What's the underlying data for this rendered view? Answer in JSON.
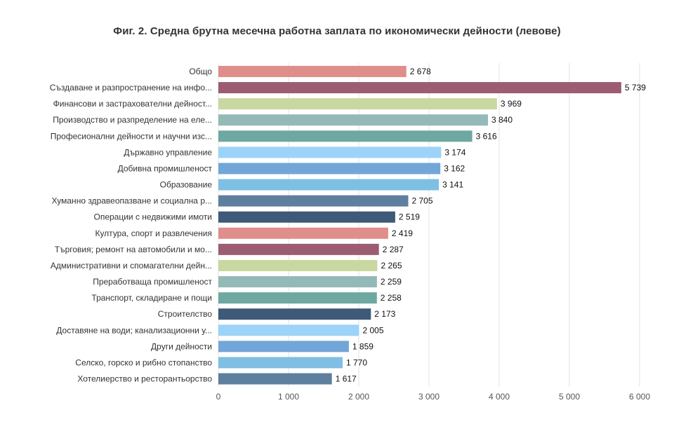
{
  "chart_data": {
    "type": "bar",
    "orientation": "horizontal",
    "title": "Фиг. 2. Средна брутна месечна работна заплата по икономически дейности (левове)",
    "xlabel": "",
    "ylabel": "",
    "xlim": [
      0,
      6000
    ],
    "xticks": [
      0,
      1000,
      2000,
      3000,
      4000,
      5000,
      6000
    ],
    "xtick_labels": [
      "0",
      "1 000",
      "2 000",
      "3 000",
      "4 000",
      "5 000",
      "6 000"
    ],
    "grid": true,
    "legend": false,
    "categories": [
      "Общо",
      "Създаване и разпространение на инфо...",
      "Финансови и застрахователни дейност...",
      "Производство и разпределение на еле...",
      "Професионални дейности и научни изс...",
      "Държавно управление",
      "Добивна промишленост",
      "Образование",
      "Хуманно здравеопазване и социална р...",
      "Операции с недвижими имоти",
      "Култура, спорт и развлечения",
      "Търговия; ремонт на автомобили и мо...",
      "Административни и спомагателни дейн...",
      "Преработваща промишленост",
      "Транспорт, складиране и пощи",
      "Строителство",
      "Доставяне на води; канализационни у...",
      "Други дейности",
      "Селско, горско и рибно стопанство",
      "Хотелиерство и ресторантьорство"
    ],
    "values": [
      2678,
      5739,
      3969,
      3840,
      3616,
      3174,
      3162,
      3141,
      2705,
      2519,
      2419,
      2287,
      2265,
      2259,
      2258,
      2173,
      2005,
      1859,
      1770,
      1617
    ],
    "value_labels": [
      "2 678",
      "5 739",
      "3 969",
      "3 840",
      "3 616",
      "3 174",
      "3 162",
      "3 141",
      "2 705",
      "2 519",
      "2 419",
      "2 287",
      "2 265",
      "2 259",
      "2 258",
      "2 173",
      "2 005",
      "1 859",
      "1 770",
      "1 617"
    ],
    "colors": [
      "#e08e8b",
      "#9c5c72",
      "#c8d8a0",
      "#94bab8",
      "#6ea8a0",
      "#9dd3f8",
      "#72a6d8",
      "#7fbfe3",
      "#5e7f9e",
      "#3e5a78",
      "#e08e8b",
      "#9c5c72",
      "#c8d8a0",
      "#94bab8",
      "#6ea8a0",
      "#3e5a78",
      "#9dd3f8",
      "#72a6d8",
      "#7fbfe3",
      "#5e7f9e"
    ]
  }
}
